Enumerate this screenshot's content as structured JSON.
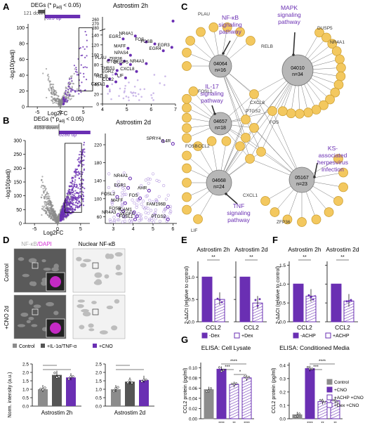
{
  "colors": {
    "purple": "#6a2fb3",
    "purple_light": "#b79ce0",
    "purple_pale": "#d9cbef",
    "grey": "#8c8c8c",
    "grey_dark": "#555555",
    "grey_light": "#bdbdbd",
    "node": "#f3c85f",
    "node_edge": "#c99b2d",
    "hub": "#b7b7b7",
    "magenta": "#d62bd6"
  },
  "panels": {
    "A": "A",
    "B": "B",
    "C": "C",
    "D": "D",
    "E": "E",
    "F": "F",
    "G": "G"
  },
  "A": {
    "degs_title": "DEGs (* p",
    "degs_sub": "adj",
    "degs_tail": " < 0.05)",
    "down_label": "121 down",
    "up_label": "623 up",
    "down": 121,
    "up": 623,
    "ylabel": "-log10(padj)",
    "xlabel": "Log2FC",
    "xticks": [
      "-5",
      "0",
      "5"
    ],
    "yticks": [
      "0",
      "20",
      "40",
      "60",
      "80",
      "100"
    ],
    "zoom_title": "Astrostim 2h",
    "zoom_xticks": [
      "4",
      "5",
      "6",
      "7"
    ],
    "zoom_yticks": [
      "0",
      "20",
      "40",
      "60",
      "80",
      "100",
      "120",
      "140"
    ],
    "zoom_ybreak": [
      "260",
      "270",
      "280"
    ],
    "genes": [
      {
        "name": "NR4A1",
        "x": 5.35,
        "y": 138
      },
      {
        "name": "EGR1",
        "x": 4.85,
        "y": 132
      },
      {
        "name": "FOS",
        "x": 5.8,
        "y": 126
      },
      {
        "name": "FOSB",
        "x": 6.15,
        "y": 122
      },
      {
        "name": "EGR3",
        "x": 6.85,
        "y": 115
      },
      {
        "name": "MAFF",
        "x": 5.05,
        "y": 113
      },
      {
        "name": "EGR4",
        "x": 6.5,
        "y": 108
      },
      {
        "name": "NPAS4",
        "x": 5.15,
        "y": 99
      },
      {
        "name": "PLAU",
        "x": 4.25,
        "y": 89
      },
      {
        "name": "ZFP36",
        "x": 4.9,
        "y": 87
      },
      {
        "name": "CTGF",
        "x": 4.75,
        "y": 81
      },
      {
        "name": "DUSP5",
        "x": 5.15,
        "y": 80
      },
      {
        "name": "NR4A3",
        "x": 5.8,
        "y": 82
      },
      {
        "name": "THBS1",
        "x": 4.6,
        "y": 68
      },
      {
        "name": "EGR2",
        "x": 4.55,
        "y": 61
      },
      {
        "name": "CXCL8",
        "x": 5.4,
        "y": 66
      },
      {
        "name": "RELB",
        "x": 4.3,
        "y": 51
      },
      {
        "name": "LIF",
        "x": 4.95,
        "y": 53
      },
      {
        "name": "CCL2",
        "x": 4.55,
        "y": 45
      },
      {
        "name": "CXCL1",
        "x": 4.2,
        "y": 36
      }
    ]
  },
  "B": {
    "degs_title": "DEGs (* p",
    "degs_sub": "adj",
    "degs_tail": " < 0.05)",
    "down_label": "4153 down",
    "up_label": "5286 up",
    "down": 4153,
    "up": 5286,
    "ylabel": "-log10(padj)",
    "xlabel": "Log2FC",
    "xticks": [
      "-5",
      "0",
      "5"
    ],
    "yticks": [
      "0",
      "50",
      "100",
      "150",
      "200",
      "250",
      "300"
    ],
    "zoom_title": "Astrostim 2d",
    "zoom_xticks": [
      "3",
      "4",
      "5",
      "6"
    ],
    "zoom_yticks": [
      "60",
      "80",
      "100",
      "120",
      "140",
      "160",
      "180",
      "200",
      "220",
      "240"
    ],
    "genes": [
      {
        "name": "SPRY4",
        "x": 5.5,
        "y": 228
      },
      {
        "name": "IL4R",
        "x": 6.0,
        "y": 222
      },
      {
        "name": "NR4A1",
        "x": 3.85,
        "y": 145
      },
      {
        "name": "EGR1",
        "x": 3.75,
        "y": 124
      },
      {
        "name": "AHR",
        "x": 4.8,
        "y": 118
      },
      {
        "name": "FOSL2",
        "x": 3.2,
        "y": 104
      },
      {
        "name": "FOS",
        "x": 4.35,
        "y": 101
      },
      {
        "name": "MAFF",
        "x": 3.6,
        "y": 90
      },
      {
        "name": "FAM196B",
        "x": 5.75,
        "y": 82
      },
      {
        "name": "FOSB",
        "x": 3.5,
        "y": 72
      },
      {
        "name": "ICAM1",
        "x": 4.05,
        "y": 70
      },
      {
        "name": "NR4A3",
        "x": 3.25,
        "y": 64
      },
      {
        "name": "VEGFC",
        "x": 4.2,
        "y": 61
      },
      {
        "name": "FOSL1",
        "x": 4.1,
        "y": 54
      },
      {
        "name": "PTGS2",
        "x": 5.75,
        "y": 54
      }
    ]
  },
  "C": {
    "hubs": [
      {
        "id": "04064",
        "n": "n=16"
      },
      {
        "id": "04010",
        "n": "n=34"
      },
      {
        "id": "04657",
        "n": "n=18"
      },
      {
        "id": "04668",
        "n": "n=24"
      },
      {
        "id": "05167",
        "n": "n=23"
      }
    ],
    "pathways": [
      "NF-κB",
      "signaling",
      "pathway",
      "MAPK",
      "signaling",
      "pathway",
      "IL-17",
      "signaling",
      "pathway",
      "TNF",
      "signaling",
      "pathway",
      "KS-",
      "associated",
      "herpesvirus",
      "infection"
    ],
    "gene_labels": [
      "PLAU",
      "DUSP5",
      "RELB",
      "NR4A1",
      "FOSL1",
      "CXCL8",
      "FOSB",
      "PTGS2",
      "FOS",
      "CCL2",
      "CXCL1",
      "LIF",
      "ZFP36"
    ]
  },
  "D": {
    "stain_a": "NF-κB",
    "stain_b": "/DAPI",
    "stain_c": "Nuclear NF-κB",
    "row1": "Control",
    "row2": "+CNO 2d",
    "legend": [
      "Control",
      "+IL-1α/TNF-α",
      "+CNO"
    ],
    "ylabel": "Norm. intensity (a.u.)",
    "yticks": [
      "0.0",
      "0.5",
      "1.0",
      "1.5",
      "2.0",
      "2.5"
    ],
    "groups": [
      "Astrostim 2h",
      "Astrostim 2d"
    ],
    "chart_data": {
      "type": "bar",
      "categories": [
        "Astrostim 2h",
        "Astrostim 2d"
      ],
      "series": [
        {
          "name": "Control",
          "values": [
            1.0,
            1.0
          ]
        },
        {
          "name": "+IL-1α/TNF-α",
          "values": [
            1.85,
            1.45
          ]
        },
        {
          "name": "+CNO",
          "values": [
            1.7,
            1.55
          ]
        }
      ],
      "ylim": [
        0,
        2.5
      ]
    }
  },
  "E": {
    "titles": [
      "Astrostim 2h",
      "Astrostim 2d"
    ],
    "ylabel": "2-ΔΔCt (relative to control)",
    "yticks": [
      "0.0",
      "0.5",
      "1.0"
    ],
    "xlabel": "CCL2",
    "sig": "**",
    "legend": [
      "-Dex",
      "+Dex"
    ],
    "chart_data": {
      "type": "bar",
      "categories": [
        "Astrostim 2h",
        "Astrostim 2d"
      ],
      "series": [
        {
          "name": "-Dex",
          "values": [
            1.0,
            1.0
          ]
        },
        {
          "name": "+Dex",
          "values": [
            0.5,
            0.42
          ]
        }
      ],
      "ylim": [
        0,
        1.4
      ]
    }
  },
  "F": {
    "titles": [
      "Astrostim 2h",
      "Astrostim 2d"
    ],
    "ylabel": "2-ΔΔCt (relative to control)",
    "yticks": [
      "0.0",
      "0.5",
      "1.0",
      "1.5"
    ],
    "xlabel": "CCL2",
    "sig": "**",
    "legend": [
      "-ACHP",
      "+ACHP"
    ],
    "chart_data": {
      "type": "bar",
      "categories": [
        "Astrostim 2h",
        "Astrostim 2d"
      ],
      "series": [
        {
          "name": "-ACHP",
          "values": [
            1.0,
            1.0
          ]
        },
        {
          "name": "+ACHP",
          "values": [
            0.68,
            0.55
          ]
        }
      ],
      "ylim": [
        0,
        1.5
      ]
    }
  },
  "G": {
    "title1": "ELISA: Cell Lysate",
    "title2": "ELISA: Conditioned Media",
    "ylabel": "CCL2 protein (pg/ml)",
    "yticks1": [
      "0.00",
      "0.02",
      "0.04",
      "0.06",
      "0.08",
      "0.10"
    ],
    "yticks2": [
      "0.0",
      "0.1",
      "0.2",
      "0.3",
      "0.4"
    ],
    "legend": [
      "Control",
      "+CNO",
      "+ACHP +CNO",
      "+Dex +CNO"
    ],
    "sig_top": "****",
    "sig_mid": "***",
    "sig_low": "*",
    "below1": [
      "****",
      "**",
      "****"
    ],
    "below2": [
      "****",
      "**",
      "**"
    ],
    "chart_data": [
      {
        "type": "bar",
        "title": "ELISA: Cell Lysate",
        "categories": [
          "Control",
          "+CNO",
          "+ACHP +CNO",
          "+Dex +CNO"
        ],
        "values": [
          0.057,
          0.097,
          0.067,
          0.08
        ],
        "ylim": [
          0,
          0.12
        ]
      },
      {
        "type": "bar",
        "title": "ELISA: Conditioned Media",
        "categories": [
          "Control",
          "+CNO",
          "+ACHP +CNO",
          "+Dex +CNO"
        ],
        "values": [
          0.03,
          0.375,
          0.128,
          0.135
        ],
        "ylim": [
          0,
          0.45
        ]
      }
    ]
  }
}
